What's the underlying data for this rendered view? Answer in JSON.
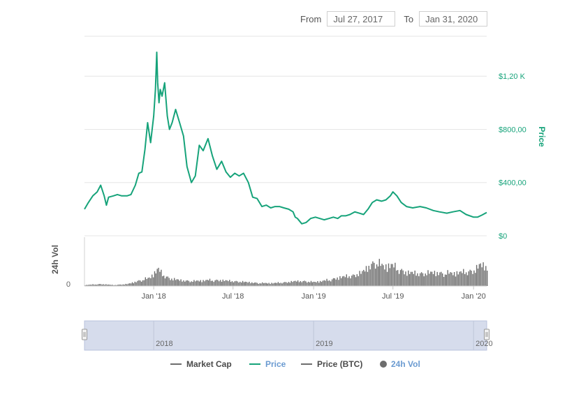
{
  "range_selector": {
    "from_label": "From",
    "from_value": "Jul 27, 2017",
    "to_label": "To",
    "to_value": "Jan 31, 2020"
  },
  "colors": {
    "price": "#16a37a",
    "volume": "#6d6d6d",
    "grid": "#e6e6e6",
    "navigator_fill": "#d6dcec",
    "navigator_border": "#b8c2dc",
    "legend_text": "#4a4a4a",
    "legend_active": "#6b9bd1"
  },
  "chart_data": {
    "type": "line",
    "x_range": [
      "2017-07-27",
      "2020-01-31"
    ],
    "x_tick_labels": [
      "Jan '18",
      "Jul '18",
      "Jan '19",
      "Jul '19",
      "Jan '20"
    ],
    "x_ticks": [
      "2018-01-01",
      "2018-07-01",
      "2019-01-01",
      "2019-07-01",
      "2020-01-01"
    ],
    "price_axis": {
      "label": "Price",
      "ylim": [
        0,
        1500
      ],
      "ticks": [
        0,
        400,
        800,
        1200
      ],
      "tick_labels": [
        "$0",
        "$400,00",
        "$800,00",
        "$1,20 K"
      ]
    },
    "volume_axis": {
      "label": "24h Vol",
      "ticks": [
        0
      ],
      "tick_labels": [
        "0"
      ],
      "ylim": [
        0,
        40
      ]
    },
    "navigator_labels": [
      "2018",
      "2019",
      "2020"
    ],
    "navigator_ticks": [
      "2018-01-01",
      "2019-01-01",
      "2020-01-01"
    ],
    "legend": [
      {
        "name": "Market Cap",
        "symbol": "line",
        "color": "#6d6d6d"
      },
      {
        "name": "Price",
        "symbol": "line",
        "color": "#16a37a"
      },
      {
        "name": "Price (BTC)",
        "symbol": "line",
        "color": "#6d6d6d"
      },
      {
        "name": "24h Vol",
        "symbol": "dot",
        "color": "#6d6d6d"
      }
    ],
    "series": [
      {
        "name": "Price",
        "x": [
          "2017-07-27",
          "2017-08-05",
          "2017-08-15",
          "2017-08-25",
          "2017-09-02",
          "2017-09-10",
          "2017-09-15",
          "2017-09-20",
          "2017-10-01",
          "2017-10-10",
          "2017-10-20",
          "2017-11-01",
          "2017-11-10",
          "2017-11-20",
          "2017-11-28",
          "2017-12-05",
          "2017-12-12",
          "2017-12-18",
          "2017-12-25",
          "2018-01-01",
          "2018-01-05",
          "2018-01-08",
          "2018-01-10",
          "2018-01-13",
          "2018-01-16",
          "2018-01-20",
          "2018-01-26",
          "2018-02-01",
          "2018-02-06",
          "2018-02-12",
          "2018-02-20",
          "2018-03-01",
          "2018-03-10",
          "2018-03-18",
          "2018-03-28",
          "2018-04-06",
          "2018-04-15",
          "2018-04-24",
          "2018-05-05",
          "2018-05-15",
          "2018-05-25",
          "2018-06-05",
          "2018-06-15",
          "2018-06-25",
          "2018-07-05",
          "2018-07-15",
          "2018-07-25",
          "2018-08-05",
          "2018-08-15",
          "2018-08-25",
          "2018-09-05",
          "2018-09-15",
          "2018-09-25",
          "2018-10-05",
          "2018-10-15",
          "2018-10-25",
          "2018-11-05",
          "2018-11-15",
          "2018-11-20",
          "2018-11-25",
          "2018-12-05",
          "2018-12-15",
          "2018-12-25",
          "2019-01-05",
          "2019-01-15",
          "2019-01-25",
          "2019-02-05",
          "2019-02-15",
          "2019-02-25",
          "2019-03-05",
          "2019-03-15",
          "2019-03-25",
          "2019-04-05",
          "2019-04-15",
          "2019-04-25",
          "2019-05-05",
          "2019-05-15",
          "2019-05-25",
          "2019-06-05",
          "2019-06-15",
          "2019-06-25",
          "2019-07-01",
          "2019-07-10",
          "2019-07-20",
          "2019-08-01",
          "2019-08-15",
          "2019-09-01",
          "2019-09-15",
          "2019-10-01",
          "2019-10-15",
          "2019-11-01",
          "2019-11-15",
          "2019-12-01",
          "2019-12-15",
          "2020-01-01",
          "2020-01-10",
          "2020-01-20",
          "2020-01-31"
        ],
        "values": [
          200,
          250,
          300,
          330,
          380,
          300,
          230,
          290,
          300,
          310,
          300,
          300,
          310,
          380,
          470,
          480,
          650,
          850,
          700,
          900,
          1100,
          1380,
          1150,
          1000,
          1100,
          1050,
          1150,
          900,
          800,
          850,
          950,
          850,
          750,
          520,
          400,
          450,
          680,
          640,
          730,
          600,
          500,
          560,
          480,
          440,
          470,
          450,
          470,
          400,
          290,
          280,
          220,
          230,
          210,
          220,
          220,
          210,
          200,
          180,
          140,
          130,
          90,
          100,
          130,
          140,
          130,
          120,
          130,
          140,
          130,
          150,
          150,
          160,
          180,
          170,
          160,
          200,
          250,
          270,
          260,
          270,
          300,
          330,
          300,
          250,
          220,
          210,
          220,
          210,
          190,
          180,
          170,
          180,
          190,
          160,
          140,
          140,
          155,
          175
        ]
      }
    ],
    "volume": {
      "name": "24h Vol",
      "x": [
        "2017-07-27",
        "2017-09-01",
        "2017-10-01",
        "2017-11-01",
        "2017-12-01",
        "2017-12-20",
        "2018-01-05",
        "2018-01-10",
        "2018-01-20",
        "2018-02-05",
        "2018-03-01",
        "2018-04-01",
        "2018-05-01",
        "2018-06-01",
        "2018-07-01",
        "2018-08-01",
        "2018-09-01",
        "2018-10-01",
        "2018-11-01",
        "2018-11-20",
        "2018-12-10",
        "2019-01-01",
        "2019-02-01",
        "2019-03-01",
        "2019-04-01",
        "2019-04-20",
        "2019-05-05",
        "2019-05-20",
        "2019-06-10",
        "2019-06-25",
        "2019-07-10",
        "2019-08-01",
        "2019-09-01",
        "2019-10-01",
        "2019-11-01",
        "2019-12-01",
        "2020-01-01",
        "2020-01-15",
        "2020-01-31"
      ],
      "values": [
        1,
        2,
        1,
        2,
        6,
        8,
        15,
        18,
        12,
        8,
        6,
        5,
        6,
        6,
        5,
        4,
        3,
        3,
        4,
        5,
        5,
        4,
        6,
        9,
        11,
        14,
        20,
        25,
        20,
        22,
        18,
        14,
        13,
        14,
        13,
        14,
        16,
        22,
        20
      ]
    }
  }
}
